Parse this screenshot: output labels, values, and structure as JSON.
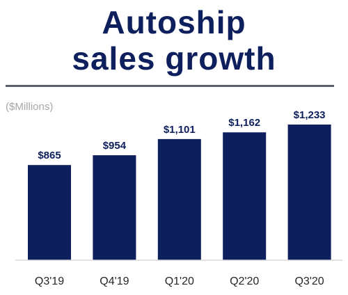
{
  "header": {
    "title_line1": "Autoship",
    "title_line2": "sales growth"
  },
  "chart_data": {
    "type": "bar",
    "unit_label": "($Millions)",
    "categories": [
      "Q3'19",
      "Q4'19",
      "Q1'20",
      "Q2'20",
      "Q3'20"
    ],
    "values": [
      865,
      954,
      1101,
      1162,
      1233
    ],
    "data_labels": [
      "$865",
      "$954",
      "$1,101",
      "$1,162",
      "$1,233"
    ],
    "bar_color": "#0d1f5c",
    "axis_color": "#d9d9d9",
    "grid": false,
    "legend": "none"
  }
}
